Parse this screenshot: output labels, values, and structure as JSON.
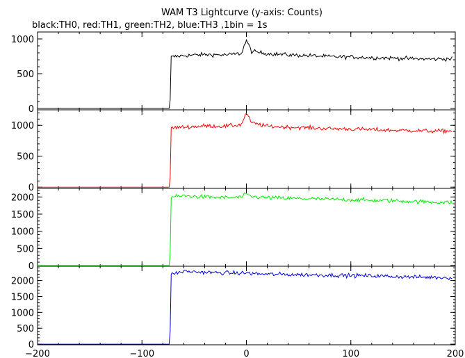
{
  "chart_data": {
    "type": "line",
    "title": "WAM T3 Lightcurve (y-axis: Counts)",
    "subtitle": "black:TH0, red:TH1, green:TH2, blue:TH3 ,1bin = 1s",
    "xlabel": "",
    "ylabel": "",
    "xlim": [
      -200,
      200
    ],
    "x_ticks": [
      -200,
      -100,
      0,
      100,
      200
    ],
    "grid": false,
    "panels": [
      {
        "name": "TH0",
        "color": "#000000",
        "ylim": [
          -20,
          1100
        ],
        "y_ticks": [
          0,
          500,
          1000
        ],
        "onset_x": -73,
        "points": [
          [
            -200,
            0
          ],
          [
            -74,
            0
          ],
          [
            -73,
            120
          ],
          [
            -72,
            740
          ],
          [
            -60,
            760
          ],
          [
            -40,
            775
          ],
          [
            -20,
            770
          ],
          [
            -5,
            790
          ],
          [
            0,
            980
          ],
          [
            5,
            820
          ],
          [
            20,
            790
          ],
          [
            40,
            770
          ],
          [
            60,
            760
          ],
          [
            80,
            745
          ],
          [
            100,
            740
          ],
          [
            120,
            730
          ],
          [
            140,
            725
          ],
          [
            160,
            715
          ],
          [
            180,
            710
          ],
          [
            197,
            715
          ]
        ]
      },
      {
        "name": "TH1",
        "color": "#ff0000",
        "ylim": [
          -20,
          1250
        ],
        "y_ticks": [
          0,
          500,
          1000
        ],
        "onset_x": -73,
        "points": [
          [
            -200,
            0
          ],
          [
            -74,
            0
          ],
          [
            -73,
            150
          ],
          [
            -72,
            960
          ],
          [
            -60,
            970
          ],
          [
            -40,
            990
          ],
          [
            -20,
            985
          ],
          [
            -5,
            1010
          ],
          [
            0,
            1200
          ],
          [
            5,
            1040
          ],
          [
            20,
            985
          ],
          [
            40,
            970
          ],
          [
            60,
            960
          ],
          [
            80,
            945
          ],
          [
            100,
            940
          ],
          [
            120,
            930
          ],
          [
            140,
            920
          ],
          [
            160,
            915
          ],
          [
            180,
            905
          ],
          [
            197,
            910
          ]
        ]
      },
      {
        "name": "TH2",
        "color": "#00ee00",
        "ylim": [
          -20,
          2250
        ],
        "y_ticks": [
          0,
          500,
          1000,
          1500,
          2000
        ],
        "onset_x": -73,
        "points": [
          [
            -200,
            0
          ],
          [
            -74,
            0
          ],
          [
            -73,
            350
          ],
          [
            -72,
            2000
          ],
          [
            -60,
            2030
          ],
          [
            -40,
            2000
          ],
          [
            -20,
            1980
          ],
          [
            -5,
            1990
          ],
          [
            0,
            2080
          ],
          [
            5,
            2010
          ],
          [
            20,
            1980
          ],
          [
            40,
            1960
          ],
          [
            60,
            1950
          ],
          [
            80,
            1930
          ],
          [
            100,
            1920
          ],
          [
            120,
            1900
          ],
          [
            140,
            1890
          ],
          [
            160,
            1870
          ],
          [
            180,
            1850
          ],
          [
            197,
            1840
          ]
        ]
      },
      {
        "name": "TH3",
        "color": "#0000dd",
        "ylim": [
          -20,
          2450
        ],
        "y_ticks": [
          0,
          500,
          1000,
          1500,
          2000
        ],
        "onset_x": -73,
        "points": [
          [
            -200,
            0
          ],
          [
            -74,
            0
          ],
          [
            -73,
            400
          ],
          [
            -72,
            2200
          ],
          [
            -60,
            2290
          ],
          [
            -40,
            2260
          ],
          [
            -20,
            2240
          ],
          [
            -5,
            2230
          ],
          [
            0,
            2240
          ],
          [
            5,
            2220
          ],
          [
            20,
            2200
          ],
          [
            40,
            2190
          ],
          [
            60,
            2180
          ],
          [
            80,
            2170
          ],
          [
            100,
            2160
          ],
          [
            120,
            2150
          ],
          [
            140,
            2130
          ],
          [
            160,
            2110
          ],
          [
            180,
            2100
          ],
          [
            197,
            2090
          ]
        ]
      }
    ]
  }
}
